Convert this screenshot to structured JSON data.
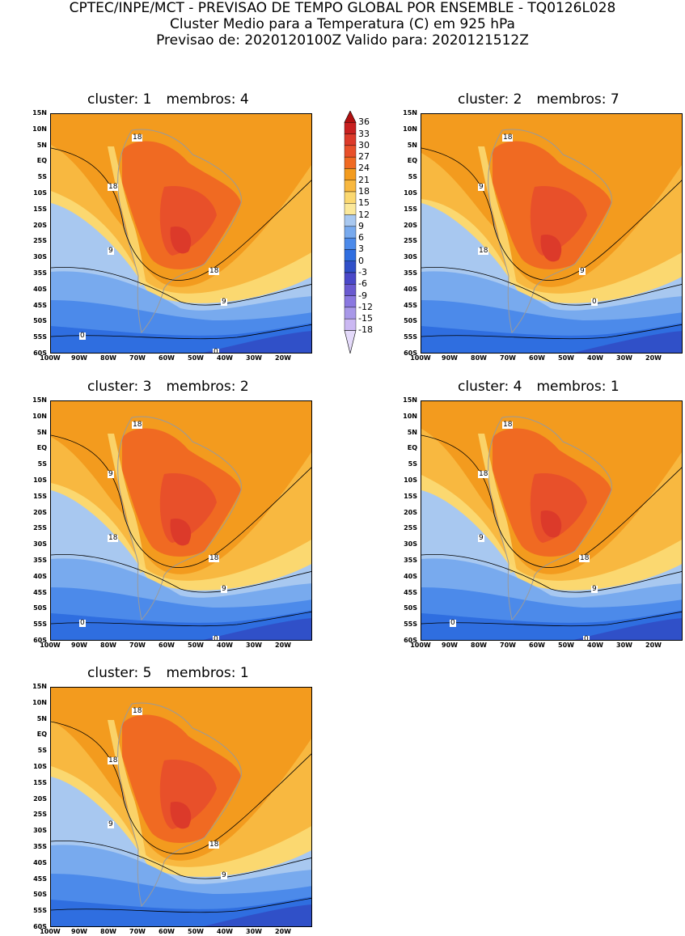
{
  "header": {
    "line1": "CPTEC/INPE/MCT - PREVISAO DE TEMPO GLOBAL POR ENSEMBLE - TQ0126L028",
    "line2": "Cluster Medio para a Temperatura (C) em 925 hPa",
    "line3": "Previsao de: 2020120100Z   Valido para: 2020121512Z"
  },
  "panels": [
    {
      "cluster": "cluster: 1",
      "members": "membros: 4"
    },
    {
      "cluster": "cluster: 2",
      "members": "membros: 7"
    },
    {
      "cluster": "cluster: 3",
      "members": "membros: 2"
    },
    {
      "cluster": "cluster: 4",
      "members": "membros: 1"
    },
    {
      "cluster": "cluster: 5",
      "members": "membros: 1"
    }
  ],
  "lat_labels": [
    "15N",
    "10N",
    "5N",
    "EQ",
    "5S",
    "10S",
    "15S",
    "20S",
    "25S",
    "30S",
    "35S",
    "40S",
    "45S",
    "50S",
    "55S",
    "60S"
  ],
  "lon_labels": [
    "100W",
    "90W",
    "80W",
    "70W",
    "60W",
    "50W",
    "40W",
    "30W",
    "20W"
  ],
  "colorbar": {
    "labels": [
      "36",
      "33",
      "30",
      "27",
      "24",
      "21",
      "18",
      "15",
      "12",
      "9",
      "6",
      "3",
      "0",
      "-3",
      "-6",
      "-9",
      "-12",
      "-15",
      "-18"
    ],
    "colors": [
      "#b01010",
      "#c82020",
      "#dc3a2a",
      "#e8502a",
      "#f06a22",
      "#f39b1e",
      "#f8b840",
      "#fbd870",
      "#fbe89a",
      "#a8c8f0",
      "#78aaee",
      "#4c8aea",
      "#2f6ee0",
      "#3050c8",
      "#4a48c8",
      "#6a5ad0",
      "#8a78e0",
      "#a898e8",
      "#cbb8f2",
      "#e4dafa"
    ]
  },
  "contour_labels": {
    "p1": [
      "18",
      "18",
      "9",
      "18",
      "9",
      "0",
      "0"
    ],
    "p2": [
      "18",
      "9",
      "18",
      "9",
      "0"
    ],
    "p3": [
      "18",
      "9",
      "18",
      "18",
      "9",
      "0",
      "0"
    ],
    "p4": [
      "18",
      "18",
      "9",
      "18",
      "9",
      "0",
      "0"
    ],
    "p5": [
      "18",
      "18",
      "9",
      "18",
      "9"
    ]
  }
}
